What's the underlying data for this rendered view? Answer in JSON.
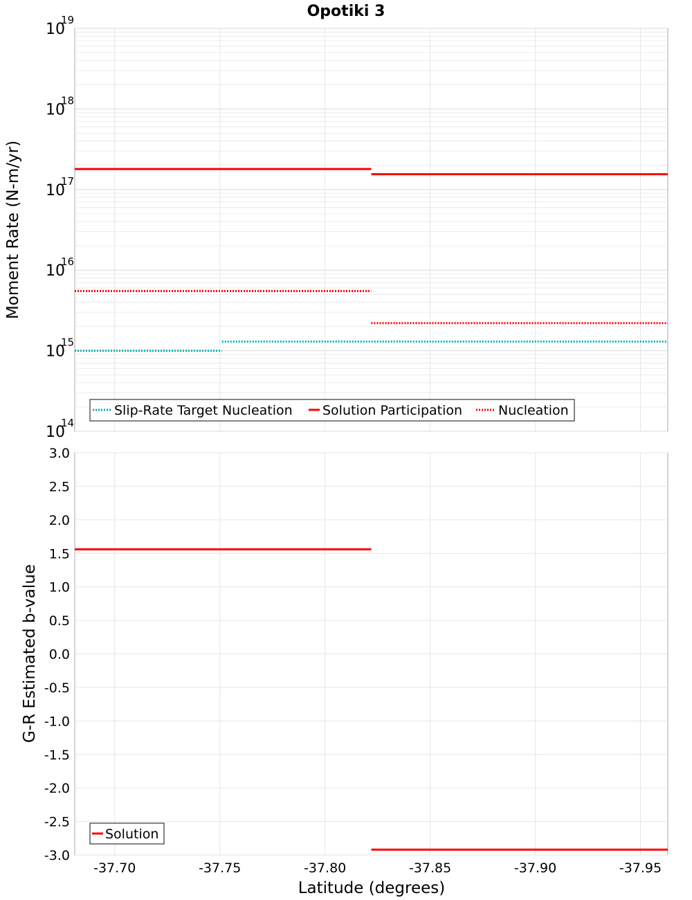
{
  "chart_data": [
    {
      "type": "line",
      "title": "Opotiki 3",
      "ylabel": "Moment Rate (N-m/yr)",
      "xlabel": "",
      "yscale": "log",
      "ylim_exp": [
        14,
        19
      ],
      "y_tick_exponents": [
        14,
        15,
        16,
        17,
        18,
        19
      ],
      "y_tick_base": "10",
      "xlim": [
        -37.681,
        -37.963
      ],
      "x_breaks": [
        -37.681,
        -37.751,
        -37.822,
        -37.963
      ],
      "grid": true,
      "legend_position": "bottom-left",
      "series": [
        {
          "name": "Slip-Rate Target Nucleation",
          "color": "#00b0b0",
          "style": "dotted",
          "segments": [
            {
              "x0": -37.681,
              "x1": -37.751,
              "y": 1000000000000000.0
            },
            {
              "x0": -37.751,
              "x1": -37.963,
              "y": 1300000000000000.0
            }
          ]
        },
        {
          "name": "Solution Participation",
          "color": "#ff0000",
          "style": "solid",
          "segments": [
            {
              "x0": -37.681,
              "x1": -37.822,
              "y": 1.8e+17
            },
            {
              "x0": -37.822,
              "x1": -37.963,
              "y": 1.55e+17
            }
          ]
        },
        {
          "name": "Nucleation",
          "color": "#ff0000",
          "style": "dotted",
          "segments": [
            {
              "x0": -37.681,
              "x1": -37.822,
              "y": 5500000000000000.0
            },
            {
              "x0": -37.822,
              "x1": -37.963,
              "y": 2200000000000000.0
            }
          ]
        }
      ]
    },
    {
      "type": "line",
      "title": "",
      "ylabel": "G-R Estimated b-value",
      "xlabel": "Latitude (degrees)",
      "ylim": [
        -3.0,
        3.0
      ],
      "y_ticks": [
        "-3.0",
        "-2.5",
        "-2.0",
        "-1.5",
        "-1.0",
        "-0.5",
        "0.0",
        "0.5",
        "1.0",
        "1.5",
        "2.0",
        "2.5",
        "3.0"
      ],
      "xlim": [
        -37.681,
        -37.963
      ],
      "x_ticks": [
        "-37.70",
        "-37.75",
        "-37.80",
        "-37.85",
        "-37.90",
        "-37.95"
      ],
      "grid": true,
      "legend_position": "bottom-left",
      "series": [
        {
          "name": "Solution",
          "color": "#ff0000",
          "style": "solid",
          "segments": [
            {
              "x0": -37.681,
              "x1": -37.822,
              "y": 1.56
            },
            {
              "x0": -37.822,
              "x1": -37.963,
              "y": -2.92
            }
          ]
        }
      ]
    }
  ]
}
